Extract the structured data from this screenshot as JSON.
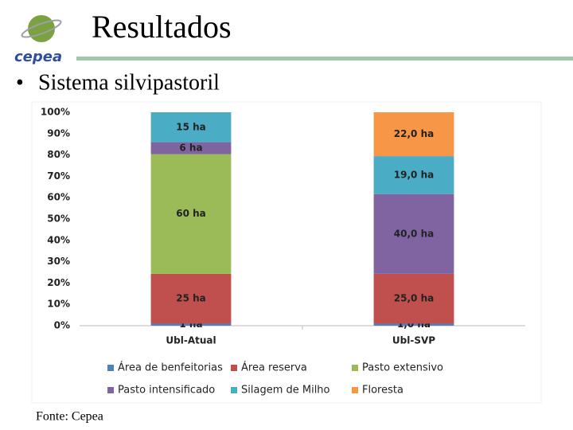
{
  "logo_text": "cepea",
  "title": "Resultados",
  "bullet": "Sistema silvipastoril",
  "footer": "Fonte: Cepea",
  "chart_data": {
    "type": "bar",
    "stacking": "percent",
    "categories": [
      "Ubl-Atual",
      "Ubl-SVP"
    ],
    "series": [
      {
        "name": "Área de benfeitorias",
        "color": "#4f81bd",
        "values": [
          1,
          1.0
        ],
        "value_labels": [
          "1 ha",
          "1,0 ha"
        ]
      },
      {
        "name": "Área reserva",
        "color": "#c0504d",
        "values": [
          25,
          25.0
        ],
        "value_labels": [
          "25 ha",
          "25,0 ha"
        ]
      },
      {
        "name": "Pasto extensivo",
        "color": "#9bbb59",
        "values": [
          60,
          null
        ],
        "value_labels": [
          "60 ha",
          null
        ]
      },
      {
        "name": "Pasto intensificado",
        "color": "#8064a2",
        "values": [
          6,
          40.0
        ],
        "value_labels": [
          "6 ha",
          "40,0 ha"
        ]
      },
      {
        "name": "Silagem de Milho",
        "color": "#4bacc6",
        "values": [
          15,
          19.0
        ],
        "value_labels": [
          "15 ha",
          "19,0 ha"
        ]
      },
      {
        "name": "Floresta",
        "color": "#f79646",
        "values": [
          null,
          22.0
        ],
        "value_labels": [
          null,
          "22,0 ha"
        ]
      }
    ],
    "ylim": [
      0,
      100
    ],
    "yticks": [
      {
        "value": 0,
        "label": "0%"
      },
      {
        "value": 10,
        "label": "10%"
      },
      {
        "value": 20,
        "label": "20%"
      },
      {
        "value": 30,
        "label": "30%"
      },
      {
        "value": 40,
        "label": "40%"
      },
      {
        "value": 50,
        "label": "50%"
      },
      {
        "value": 60,
        "label": "60%"
      },
      {
        "value": 70,
        "label": "70%"
      },
      {
        "value": 80,
        "label": "80%"
      },
      {
        "value": 90,
        "label": "90%"
      },
      {
        "value": 100,
        "label": "100%"
      }
    ],
    "grid": false,
    "legend": "bottom"
  }
}
